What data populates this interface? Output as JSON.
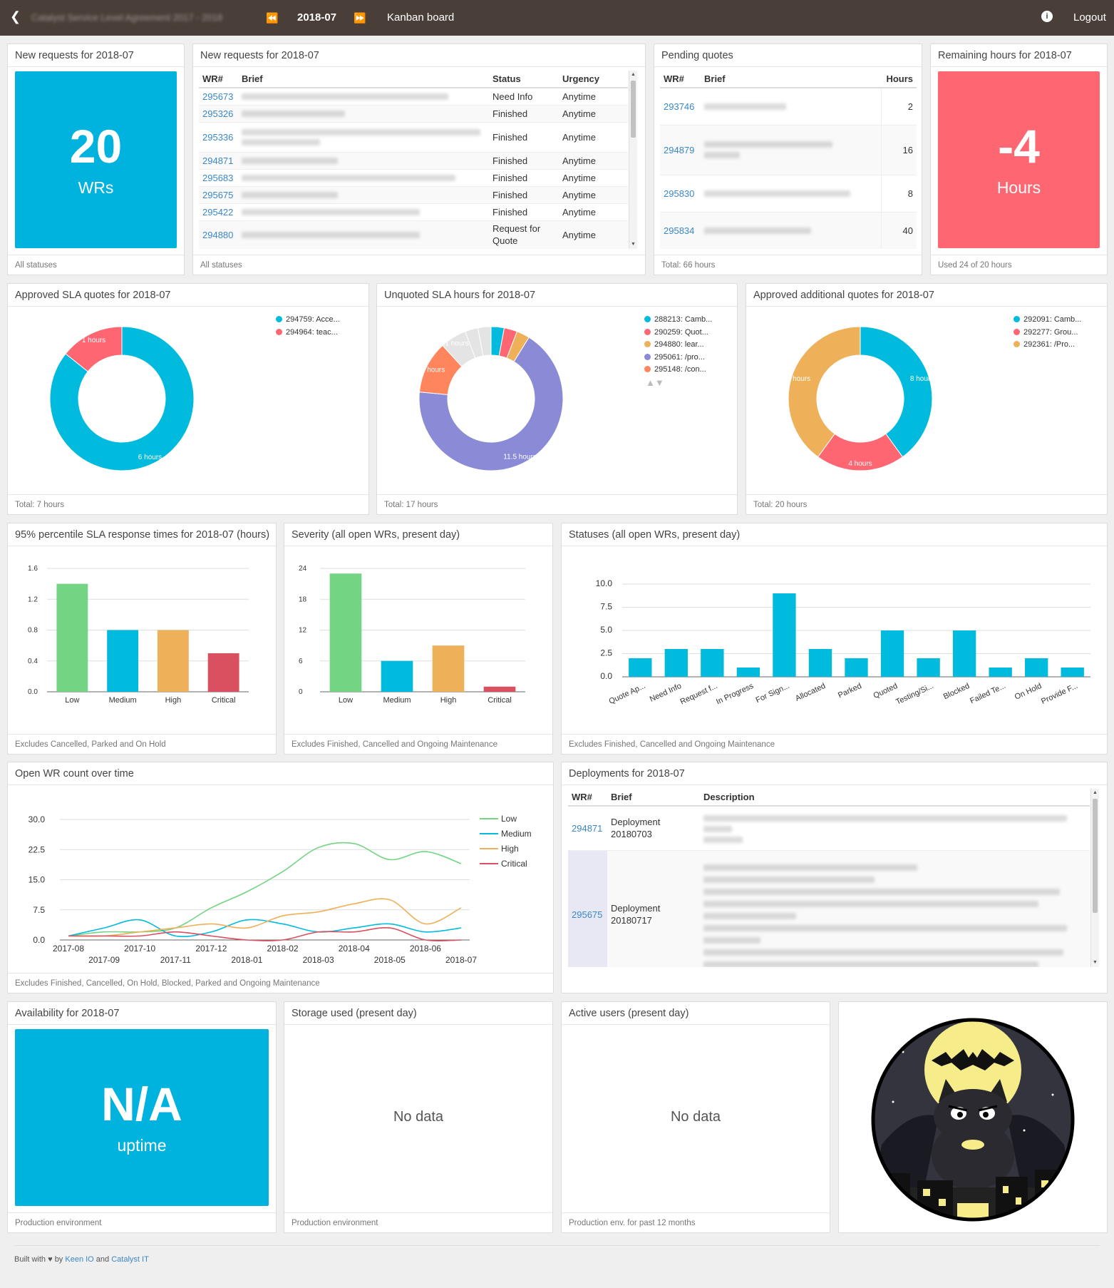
{
  "topbar": {
    "back_icon": "chevron-left-icon",
    "title": "Catalyst Service Level Agreement 2017 - 2018",
    "prev_icon": "rewind-icon",
    "period": "2018-07",
    "next_icon": "fast-forward-icon",
    "kanban": "Kanban board",
    "info_icon": "info-icon",
    "logout": "Logout"
  },
  "new_requests_count": {
    "title": "New requests for 2018-07",
    "value": "20",
    "unit": "WRs",
    "footer": "All statuses",
    "color": "#00b3de"
  },
  "new_requests_table": {
    "title": "New requests for 2018-07",
    "columns": [
      "WR#",
      "Brief",
      "Status",
      "Urgency"
    ],
    "rows": [
      {
        "wr": "295673",
        "status": "Need Info",
        "urgency": "Anytime"
      },
      {
        "wr": "295326",
        "status": "Finished",
        "urgency": "Anytime"
      },
      {
        "wr": "295336",
        "status": "Finished",
        "urgency": "Anytime"
      },
      {
        "wr": "294871",
        "status": "Finished",
        "urgency": "Anytime"
      },
      {
        "wr": "295683",
        "status": "Finished",
        "urgency": "Anytime"
      },
      {
        "wr": "295675",
        "status": "Finished",
        "urgency": "Anytime"
      },
      {
        "wr": "295422",
        "status": "Finished",
        "urgency": "Anytime"
      },
      {
        "wr": "294880",
        "status": "Request for Quote",
        "urgency": "Anytime"
      }
    ],
    "footer": "All statuses"
  },
  "pending_quotes": {
    "title": "Pending quotes",
    "columns": [
      "WR#",
      "Brief",
      "Hours"
    ],
    "rows": [
      {
        "wr": "293746",
        "hours": "2"
      },
      {
        "wr": "294879",
        "hours": "16"
      },
      {
        "wr": "295830",
        "hours": "8"
      },
      {
        "wr": "295834",
        "hours": "40"
      }
    ],
    "footer": "Total: 66 hours"
  },
  "remaining_hours": {
    "title": "Remaining hours for 2018-07",
    "value": "-4",
    "unit": "Hours",
    "footer": "Used 24 of 20 hours",
    "color": "#fe6672"
  },
  "approved_sla": {
    "title": "Approved SLA quotes for 2018-07",
    "legend": [
      {
        "label": "294759: Acce...",
        "color": "#00bbde"
      },
      {
        "label": "294964: teac...",
        "color": "#fe6672"
      }
    ],
    "footer": "Total: 7 hours"
  },
  "unquoted_sla": {
    "title": "Unquoted SLA hours for 2018-07",
    "legend": [
      {
        "label": "288213: Camb...",
        "color": "#00bbde"
      },
      {
        "label": "290259: Quot...",
        "color": "#fe6672"
      },
      {
        "label": "294880: lear...",
        "color": "#eeb058"
      },
      {
        "label": "295061: /pro...",
        "color": "#8a8ad6"
      },
      {
        "label": "295148: /con...",
        "color": "#ff855c"
      }
    ],
    "footer": "Total: 17 hours"
  },
  "approved_additional": {
    "title": "Approved additional quotes for 2018-07",
    "legend": [
      {
        "label": "292091: Camb...",
        "color": "#00bbde"
      },
      {
        "label": "292277: Grou...",
        "color": "#fe6672"
      },
      {
        "label": "292361: /Pro...",
        "color": "#eeb058"
      }
    ],
    "footer": "Total: 20 hours"
  },
  "percentile_panel": {
    "title": "95% percentile SLA response times for 2018-07 (hours)",
    "footer": "Excludes Cancelled, Parked and On Hold"
  },
  "severity_panel": {
    "title": "Severity (all open WRs, present day)",
    "footer": "Excludes Finished, Cancelled and Ongoing Maintenance"
  },
  "statuses_panel": {
    "title": "Statuses (all open WRs, present day)",
    "footer": "Excludes Finished, Cancelled and Ongoing Maintenance"
  },
  "openwr_panel": {
    "title": "Open WR count over time",
    "footer": "Excludes Finished, Cancelled, On Hold, Blocked, Parked and Ongoing Maintenance"
  },
  "deployments": {
    "title": "Deployments for 2018-07",
    "columns": [
      "WR#",
      "Brief",
      "Description"
    ],
    "rows": [
      {
        "wr": "294871",
        "brief": "Deployment 20180703"
      },
      {
        "wr": "295675",
        "brief": "Deployment 20180717"
      }
    ]
  },
  "availability": {
    "title": "Availability for 2018-07",
    "value": "N/A",
    "unit": "uptime",
    "footer": "Production environment",
    "color": "#00b3de"
  },
  "storage": {
    "title": "Storage used (present day)",
    "message": "No data",
    "footer": "Production environment"
  },
  "active_users": {
    "title": "Active users (present day)",
    "message": "No data",
    "footer": "Production env. for past 12 months"
  },
  "mascot": {
    "icon": "batman-cat-mascot-icon"
  },
  "footer": {
    "prefix": "Built with",
    "heart_icon": "heart-icon",
    "by": "by",
    "link1": "Keen IO",
    "and": "and",
    "link2": "Catalyst IT"
  },
  "chart_data": [
    {
      "type": "pie",
      "variant": "donut",
      "title": "Approved SLA quotes for 2018-07",
      "slices": [
        {
          "name": "294759: Acce...",
          "value": 6,
          "label": "6 hours",
          "color": "#00bbde"
        },
        {
          "name": "294964: teac...",
          "value": 1,
          "label": "1 hours",
          "color": "#fe6672"
        }
      ]
    },
    {
      "type": "pie",
      "variant": "donut",
      "title": "Unquoted SLA hours for 2018-07",
      "slices": [
        {
          "name": "288213: Camb...",
          "value": 0.5,
          "color": "#00bbde"
        },
        {
          "name": "290259: Quot...",
          "value": 0.5,
          "color": "#fe6672"
        },
        {
          "name": "294880: lear...",
          "value": 0.5,
          "color": "#eeb058"
        },
        {
          "name": "295061: /pro...",
          "value": 11.5,
          "label": "11.5 hours",
          "color": "#8a8ad6"
        },
        {
          "name": "295148: /con...",
          "value": 2,
          "label": "2 hours",
          "color": "#ff855c"
        },
        {
          "value": 1,
          "label": "1 hours",
          "color": "#e4e4e4"
        },
        {
          "value": 0.5,
          "color": "#e4e4e4"
        },
        {
          "value": 0.5,
          "color": "#e4e4e4"
        }
      ]
    },
    {
      "type": "pie",
      "variant": "donut",
      "title": "Approved additional quotes for 2018-07",
      "slices": [
        {
          "name": "292091: Camb...",
          "value": 8,
          "label": "8 hours",
          "color": "#00bbde"
        },
        {
          "name": "292277: Grou...",
          "value": 4,
          "label": "4 hours",
          "color": "#fe6672"
        },
        {
          "name": "292361: /Pro...",
          "value": 8,
          "label": "8 hours",
          "color": "#eeb058"
        }
      ]
    },
    {
      "type": "bar",
      "title": "95% percentile SLA response times for 2018-07 (hours)",
      "categories": [
        "Low",
        "Medium",
        "High",
        "Critical"
      ],
      "values": [
        1.4,
        0.8,
        0.8,
        0.5
      ],
      "colors": [
        "#73d483",
        "#00bbde",
        "#eeb058",
        "#d95060"
      ],
      "yticks": [
        "0.0",
        "0.4",
        "0.8",
        "1.2",
        "1.6"
      ],
      "ylim": [
        0,
        1.6
      ]
    },
    {
      "type": "bar",
      "title": "Severity (all open WRs, present day)",
      "categories": [
        "Low",
        "Medium",
        "High",
        "Critical"
      ],
      "values": [
        23,
        6,
        9,
        1
      ],
      "colors": [
        "#73d483",
        "#00bbde",
        "#eeb058",
        "#d95060"
      ],
      "yticks": [
        "0",
        "6",
        "12",
        "18",
        "24"
      ],
      "ylim": [
        0,
        24
      ]
    },
    {
      "type": "bar",
      "title": "Statuses (all open WRs, present day)",
      "categories": [
        "Quote Ap...",
        "Need Info",
        "Request f...",
        "In Progress",
        "For Sign...",
        "Allocated",
        "Parked",
        "Quoted",
        "Testing/Si...",
        "Blocked",
        "Failed Te...",
        "On Hold",
        "Provide F..."
      ],
      "values": [
        2,
        3,
        3,
        1,
        9,
        3,
        2,
        5,
        2,
        5,
        1,
        2,
        1
      ],
      "colors": [
        "#00bbde"
      ],
      "yticks": [
        "0.0",
        "2.5",
        "5.0",
        "7.5",
        "10.0"
      ],
      "ylim": [
        0,
        10
      ]
    },
    {
      "type": "line",
      "title": "Open WR count over time",
      "x": [
        "2017-08",
        "2017-09",
        "2017-10",
        "2017-11",
        "2017-12",
        "2018-01",
        "2018-02",
        "2018-03",
        "2018-04",
        "2018-05",
        "2018-06",
        "2018-07"
      ],
      "series": [
        {
          "name": "Low",
          "color": "#73d483",
          "values": [
            1,
            2,
            2,
            3,
            8,
            12,
            17,
            23,
            24,
            20,
            22,
            19
          ]
        },
        {
          "name": "Medium",
          "color": "#00bbde",
          "values": [
            1,
            3,
            5,
            1,
            2,
            5,
            4,
            2,
            3,
            4,
            2,
            3
          ]
        },
        {
          "name": "High",
          "color": "#eeb058",
          "values": [
            1,
            1,
            2,
            3,
            4,
            3,
            6,
            7,
            9,
            10,
            4,
            8
          ]
        },
        {
          "name": "Critical",
          "color": "#d95060",
          "values": [
            1,
            1,
            1,
            2,
            1,
            0,
            0,
            2,
            2,
            3,
            0,
            0
          ]
        }
      ],
      "yticks": [
        "0.0",
        "7.5",
        "15.0",
        "22.5",
        "30.0"
      ],
      "ylim": [
        0,
        30
      ]
    }
  ]
}
